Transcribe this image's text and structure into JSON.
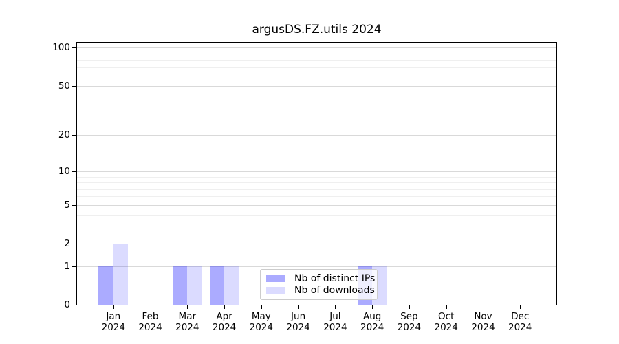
{
  "figure": {
    "background": "#ffffff"
  },
  "chart_data": {
    "type": "bar",
    "title": "argusDS.FZ.utils 2024",
    "x": {
      "categories": [
        "Jan",
        "Feb",
        "Mar",
        "Apr",
        "May",
        "Jun",
        "Jul",
        "Aug",
        "Sep",
        "Oct",
        "Nov",
        "Dec"
      ],
      "sublabel": "2024"
    },
    "y_axis": {
      "scale": "log1p",
      "tick_labels": [
        0,
        1,
        2,
        5,
        10,
        20,
        50,
        100
      ],
      "minor_gridlines": [
        3,
        4,
        6,
        7,
        8,
        9,
        30,
        40,
        60,
        70,
        80,
        90
      ],
      "ylim": [
        0,
        112
      ],
      "grid": true
    },
    "series": [
      {
        "name": "Nb of distinct IPs",
        "slug": "distinct-ips",
        "color": "#aaaaff",
        "base_color": "#0000ff",
        "alpha": 0.33,
        "values": [
          1,
          0,
          1,
          1,
          0,
          0,
          0,
          1,
          0,
          0,
          0,
          0
        ]
      },
      {
        "name": "Nb of downloads",
        "slug": "downloads",
        "color": "#dbdbff",
        "base_color": "#0000ff",
        "alpha": 0.14,
        "values": [
          2,
          0,
          1,
          1,
          0,
          0,
          0,
          1,
          0,
          0,
          0,
          0
        ]
      }
    ],
    "legend": {
      "position": "lower center"
    }
  },
  "colors": {
    "grid_major": "#d9d9d9",
    "grid_minor": "#efefef",
    "spine": "#000000",
    "text": "#000000",
    "legend_border": "#cccccc"
  }
}
